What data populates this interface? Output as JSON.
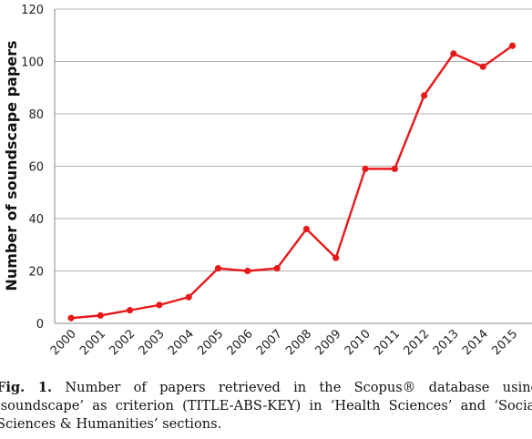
{
  "chart_data": {
    "type": "line",
    "title": "",
    "xlabel": "",
    "ylabel": "Number of soundscape papers",
    "ylim": [
      0,
      120
    ],
    "yticks": [
      0,
      20,
      40,
      60,
      80,
      100,
      120
    ],
    "grid": "horizontal",
    "legend": "none",
    "categories": [
      "2000",
      "2001",
      "2002",
      "2003",
      "2004",
      "2005",
      "2006",
      "2007",
      "2008",
      "2009",
      "2010",
      "2011",
      "2012",
      "2013",
      "2014",
      "2015"
    ],
    "series": [
      {
        "color": "#e8191b",
        "values": [
          2,
          3,
          5,
          7,
          10,
          21,
          20,
          21,
          36,
          25,
          59,
          59,
          87,
          103,
          98,
          106
        ]
      }
    ]
  },
  "caption": {
    "label": "Fig. 1.",
    "text": " Number of papers retrieved in the Scopus® database using ‘soundscape’ as criterion (TITLE-ABS-KEY) in ‘Health Sciences’ and ‘Social Sciences & Humanities’ sections."
  }
}
